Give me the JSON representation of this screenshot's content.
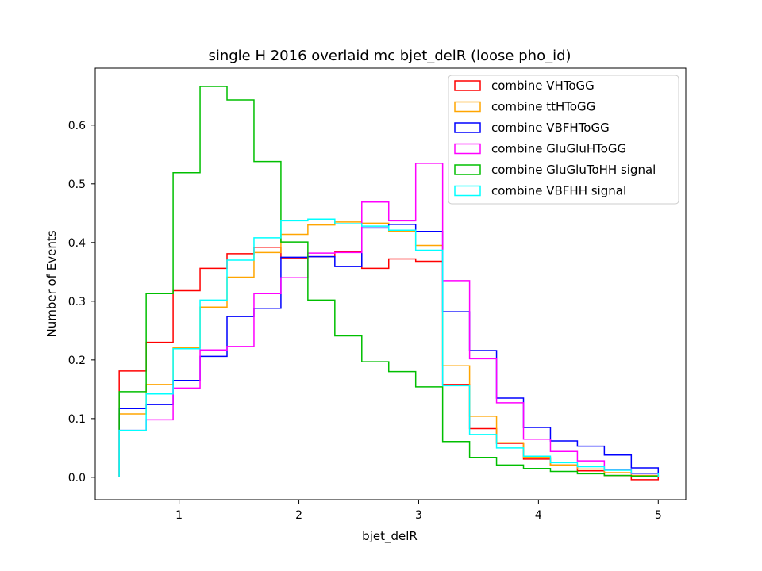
{
  "chart_data": {
    "type": "step-histogram",
    "title": "single H 2016 overlaid mc bjet_delR (loose pho_id)",
    "xlabel": "bjet_delR",
    "ylabel": "Number of Events",
    "xlim": [
      0.3,
      5.23
    ],
    "ylim": [
      -0.038,
      0.697
    ],
    "xticks": [
      1,
      2,
      3,
      4,
      5
    ],
    "yticks": [
      0.0,
      0.1,
      0.2,
      0.3,
      0.4,
      0.5,
      0.6
    ],
    "ytick_labels": [
      "0.0",
      "0.1",
      "0.2",
      "0.3",
      "0.4",
      "0.5",
      "0.6"
    ],
    "grid": false,
    "legend_position": "top-right",
    "bin_edges": [
      0.5,
      0.725,
      0.95,
      1.175,
      1.4,
      1.625,
      1.85,
      2.075,
      2.3,
      2.525,
      2.75,
      2.975,
      3.2,
      3.425,
      3.65,
      3.875,
      4.1,
      4.325,
      4.55,
      4.775,
      5.0
    ],
    "series": [
      {
        "name": "combine VHToGG",
        "color": "#ff0000",
        "values": [
          0.181,
          0.23,
          0.318,
          0.356,
          0.381,
          0.392,
          0.374,
          0.376,
          0.384,
          0.356,
          0.372,
          0.368,
          0.158,
          0.083,
          0.058,
          0.031,
          0.021,
          0.011,
          0.003,
          -0.004
        ]
      },
      {
        "name": "combine ttHToGG",
        "color": "#ffa500",
        "values": [
          0.108,
          0.158,
          0.221,
          0.29,
          0.341,
          0.383,
          0.414,
          0.43,
          0.435,
          0.433,
          0.419,
          0.395,
          0.19,
          0.104,
          0.059,
          0.034,
          0.021,
          0.014,
          0.008,
          0.003
        ]
      },
      {
        "name": "combine VBFHToGG",
        "color": "#0000ff",
        "values": [
          0.117,
          0.124,
          0.165,
          0.206,
          0.274,
          0.288,
          0.375,
          0.376,
          0.359,
          0.425,
          0.431,
          0.419,
          0.282,
          0.216,
          0.135,
          0.085,
          0.062,
          0.053,
          0.038,
          0.016
        ]
      },
      {
        "name": "combine GluGluHToGG",
        "color": "#ff00ff",
        "values": [
          0.08,
          0.098,
          0.152,
          0.217,
          0.223,
          0.313,
          0.34,
          0.382,
          0.383,
          0.469,
          0.437,
          0.535,
          0.335,
          0.202,
          0.127,
          0.065,
          0.044,
          0.028,
          0.013,
          0.006
        ]
      },
      {
        "name": "combine GluGluToHH signal",
        "color": "#00bf00",
        "values": [
          0.146,
          0.313,
          0.519,
          0.666,
          0.643,
          0.538,
          0.401,
          0.302,
          0.241,
          0.197,
          0.18,
          0.154,
          0.061,
          0.034,
          0.021,
          0.015,
          0.01,
          0.006,
          0.003,
          0.002
        ]
      },
      {
        "name": "combine VBFHH signal",
        "color": "#00ffff",
        "values": [
          0.08,
          0.142,
          0.219,
          0.302,
          0.37,
          0.408,
          0.437,
          0.44,
          0.432,
          0.428,
          0.421,
          0.387,
          0.156,
          0.073,
          0.05,
          0.036,
          0.025,
          0.018,
          0.012,
          0.007
        ]
      }
    ]
  }
}
